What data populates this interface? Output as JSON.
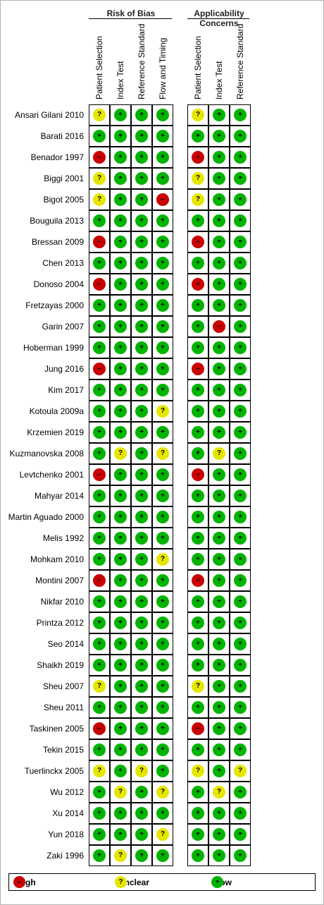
{
  "groups": [
    {
      "title": "Risk of Bias",
      "columns": [
        "Patient Selection",
        "Index Test",
        "Reference Standard",
        "Flow and Timing"
      ]
    },
    {
      "title": "Applicability Concerns",
      "columns": [
        "Patient Selection",
        "Index Test",
        "Reference Standard"
      ]
    }
  ],
  "studies": [
    {
      "name": "Ansari Gilani 2010",
      "rob": [
        "unclear",
        "low",
        "low",
        "low"
      ],
      "app": [
        "unclear",
        "low",
        "low"
      ]
    },
    {
      "name": "Barati 2016",
      "rob": [
        "low",
        "low",
        "low",
        "low"
      ],
      "app": [
        "low",
        "low",
        "low"
      ]
    },
    {
      "name": "Benador 1997",
      "rob": [
        "high",
        "low",
        "low",
        "low"
      ],
      "app": [
        "high",
        "low",
        "low"
      ]
    },
    {
      "name": "Biggi 2001",
      "rob": [
        "unclear",
        "low",
        "low",
        "low"
      ],
      "app": [
        "unclear",
        "low",
        "low"
      ]
    },
    {
      "name": "Bigot 2005",
      "rob": [
        "unclear",
        "low",
        "low",
        "high"
      ],
      "app": [
        "unclear",
        "low",
        "low"
      ]
    },
    {
      "name": "Bouguila 2013",
      "rob": [
        "low",
        "low",
        "low",
        "low"
      ],
      "app": [
        "low",
        "low",
        "low"
      ]
    },
    {
      "name": "Bressan 2009",
      "rob": [
        "high",
        "low",
        "low",
        "low"
      ],
      "app": [
        "high",
        "low",
        "low"
      ]
    },
    {
      "name": "Chen 2013",
      "rob": [
        "low",
        "low",
        "low",
        "low"
      ],
      "app": [
        "low",
        "low",
        "low"
      ]
    },
    {
      "name": "Donoso 2004",
      "rob": [
        "high",
        "low",
        "low",
        "low"
      ],
      "app": [
        "high",
        "low",
        "low"
      ]
    },
    {
      "name": "Fretzayas 2000",
      "rob": [
        "low",
        "low",
        "low",
        "low"
      ],
      "app": [
        "low",
        "low",
        "low"
      ]
    },
    {
      "name": "Garin 2007",
      "rob": [
        "low",
        "low",
        "low",
        "low"
      ],
      "app": [
        "low",
        "high",
        "low"
      ]
    },
    {
      "name": "Hoberman 1999",
      "rob": [
        "low",
        "low",
        "low",
        "low"
      ],
      "app": [
        "low",
        "low",
        "low"
      ]
    },
    {
      "name": "Jung 2016",
      "rob": [
        "high",
        "low",
        "low",
        "low"
      ],
      "app": [
        "high",
        "low",
        "low"
      ]
    },
    {
      "name": "Kim 2017",
      "rob": [
        "low",
        "low",
        "low",
        "low"
      ],
      "app": [
        "low",
        "low",
        "low"
      ]
    },
    {
      "name": "Kotoula 2009a",
      "rob": [
        "low",
        "low",
        "low",
        "unclear"
      ],
      "app": [
        "low",
        "low",
        "low"
      ]
    },
    {
      "name": "Krzemien 2019",
      "rob": [
        "low",
        "low",
        "low",
        "low"
      ],
      "app": [
        "low",
        "low",
        "low"
      ]
    },
    {
      "name": "Kuzmanovska 2008",
      "rob": [
        "low",
        "unclear",
        "low",
        "unclear"
      ],
      "app": [
        "low",
        "unclear",
        "low"
      ]
    },
    {
      "name": "Levtchenko 2001",
      "rob": [
        "high",
        "low",
        "low",
        "low"
      ],
      "app": [
        "high",
        "low",
        "low"
      ]
    },
    {
      "name": "Mahyar 2014",
      "rob": [
        "low",
        "low",
        "low",
        "low"
      ],
      "app": [
        "low",
        "low",
        "low"
      ]
    },
    {
      "name": "Martin Aguado 2000",
      "rob": [
        "low",
        "low",
        "low",
        "low"
      ],
      "app": [
        "low",
        "low",
        "low"
      ]
    },
    {
      "name": "Melis 1992",
      "rob": [
        "low",
        "low",
        "low",
        "low"
      ],
      "app": [
        "low",
        "low",
        "low"
      ]
    },
    {
      "name": "Mohkam 2010",
      "rob": [
        "low",
        "low",
        "low",
        "unclear"
      ],
      "app": [
        "low",
        "low",
        "low"
      ]
    },
    {
      "name": "Montini 2007",
      "rob": [
        "high",
        "low",
        "low",
        "low"
      ],
      "app": [
        "high",
        "low",
        "low"
      ]
    },
    {
      "name": "Nikfar 2010",
      "rob": [
        "low",
        "low",
        "low",
        "low"
      ],
      "app": [
        "low",
        "low",
        "low"
      ]
    },
    {
      "name": "Printza 2012",
      "rob": [
        "low",
        "low",
        "low",
        "low"
      ],
      "app": [
        "low",
        "low",
        "low"
      ]
    },
    {
      "name": "Seo 2014",
      "rob": [
        "low",
        "low",
        "low",
        "low"
      ],
      "app": [
        "low",
        "low",
        "low"
      ]
    },
    {
      "name": "Shaikh 2019",
      "rob": [
        "low",
        "low",
        "low",
        "low"
      ],
      "app": [
        "low",
        "low",
        "low"
      ]
    },
    {
      "name": "Sheu 2007",
      "rob": [
        "unclear",
        "low",
        "low",
        "low"
      ],
      "app": [
        "unclear",
        "low",
        "low"
      ]
    },
    {
      "name": "Sheu 2011",
      "rob": [
        "low",
        "low",
        "low",
        "low"
      ],
      "app": [
        "low",
        "low",
        "low"
      ]
    },
    {
      "name": "Taskinen 2005",
      "rob": [
        "high",
        "low",
        "low",
        "low"
      ],
      "app": [
        "high",
        "low",
        "low"
      ]
    },
    {
      "name": "Tekin 2015",
      "rob": [
        "low",
        "low",
        "low",
        "low"
      ],
      "app": [
        "low",
        "low",
        "low"
      ]
    },
    {
      "name": "Tuerlinckx 2005",
      "rob": [
        "unclear",
        "low",
        "unclear",
        "low"
      ],
      "app": [
        "unclear",
        "low",
        "unclear"
      ]
    },
    {
      "name": "Wu 2012",
      "rob": [
        "low",
        "unclear",
        "low",
        "unclear"
      ],
      "app": [
        "low",
        "unclear",
        "low"
      ]
    },
    {
      "name": "Xu 2014",
      "rob": [
        "low",
        "low",
        "low",
        "low"
      ],
      "app": [
        "low",
        "low",
        "low"
      ]
    },
    {
      "name": "Yun 2018",
      "rob": [
        "low",
        "low",
        "low",
        "unclear"
      ],
      "app": [
        "low",
        "low",
        "low"
      ]
    },
    {
      "name": "Zaki 1996",
      "rob": [
        "low",
        "unclear",
        "low",
        "low"
      ],
      "app": [
        "low",
        "low",
        "low"
      ]
    }
  ],
  "ratings": {
    "low": {
      "label": "Low",
      "symbol": "+",
      "color": "#00b400"
    },
    "unclear": {
      "label": "Unclear",
      "symbol": "?",
      "color": "#e6e600"
    },
    "high": {
      "label": "High",
      "symbol": "–",
      "color": "#c80000"
    }
  },
  "legend": [
    "high",
    "unclear",
    "low"
  ]
}
